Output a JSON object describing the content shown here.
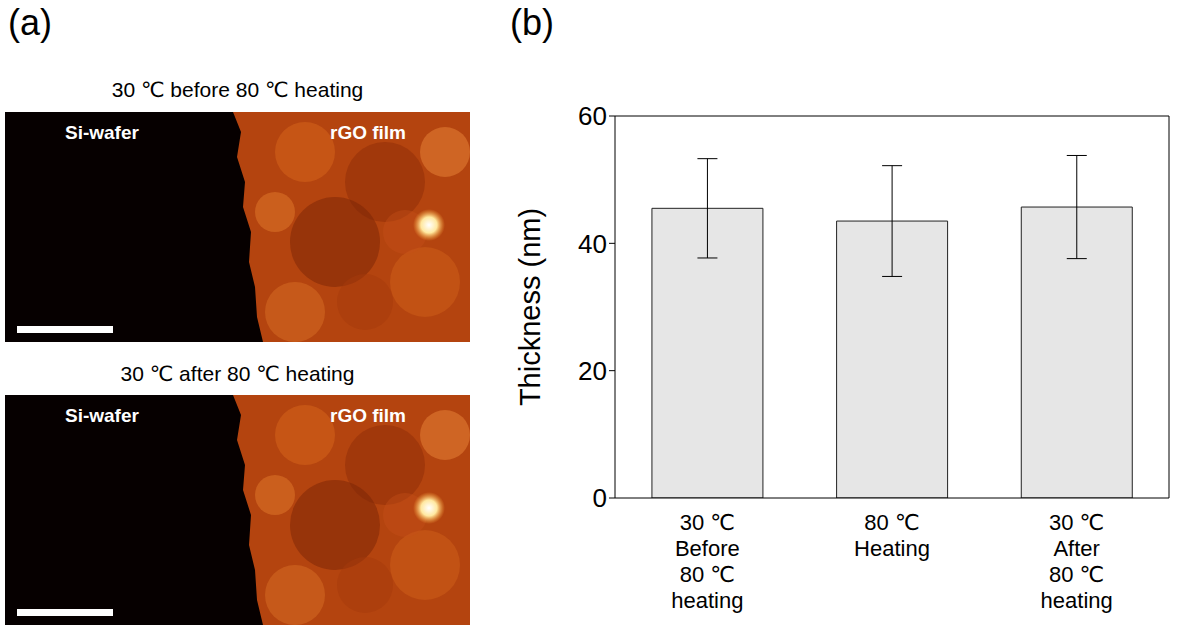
{
  "panel_labels": [
    "(a)",
    "(b)"
  ],
  "images": [
    {
      "title": "30 ℃ before 80 ℃ heating",
      "labels": [
        "Si-wafer",
        "rGO film"
      ]
    },
    {
      "title": "30 ℃ after 80 ℃ heating",
      "labels": [
        "Si-wafer",
        "rGO film"
      ]
    }
  ],
  "chart_data": {
    "type": "bar",
    "categories": [
      "30 ℃\nBefore\n80 ℃\nheating",
      "80 ℃\nHeating",
      "30 ℃\nAfter\n80 ℃\nheating"
    ],
    "values": [
      45.5,
      43.5,
      45.7
    ],
    "errors": [
      7.8,
      8.7,
      8.1
    ],
    "y_label": "Thickness (nm)",
    "ylim": [
      0,
      60
    ],
    "yticks": [
      0,
      20,
      40,
      60
    ],
    "color": "#e6e6e6",
    "grid": false
  }
}
